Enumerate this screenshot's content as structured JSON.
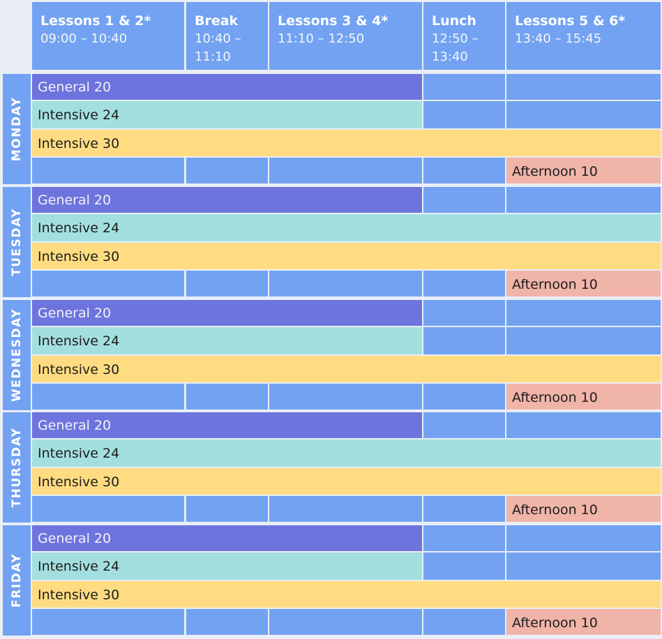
{
  "header": {
    "columns": [
      {
        "title": "Lessons 1 & 2*",
        "time": "09:00 – 10:40"
      },
      {
        "title": "Break",
        "time": "10:40 – 11:10"
      },
      {
        "title": "Lessons 3 & 4*",
        "time": "11:10 – 12:50"
      },
      {
        "title": "Lunch",
        "time": "12:50 – 13:40"
      },
      {
        "title": "Lessons 5 & 6*",
        "time": "13:40 – 15:45"
      }
    ]
  },
  "courses": {
    "general": "General 20",
    "int24": "Intensive 24",
    "int30": "Intensive 30",
    "aft": "Afternoon 10"
  },
  "days": [
    {
      "name": "MONDAY",
      "int24_full": false
    },
    {
      "name": "TUESDAY",
      "int24_full": true
    },
    {
      "name": "WEDNESDAY",
      "int24_full": false
    },
    {
      "name": "THURSDAY",
      "int24_full": true
    },
    {
      "name": "FRIDAY",
      "int24_full": false
    }
  ],
  "colors": {
    "cell": "#72a2f1",
    "general": "#6e74dd",
    "int24": "#a4dfdf",
    "int30": "#ffdc82",
    "afternoon": "#f0b4a8"
  }
}
